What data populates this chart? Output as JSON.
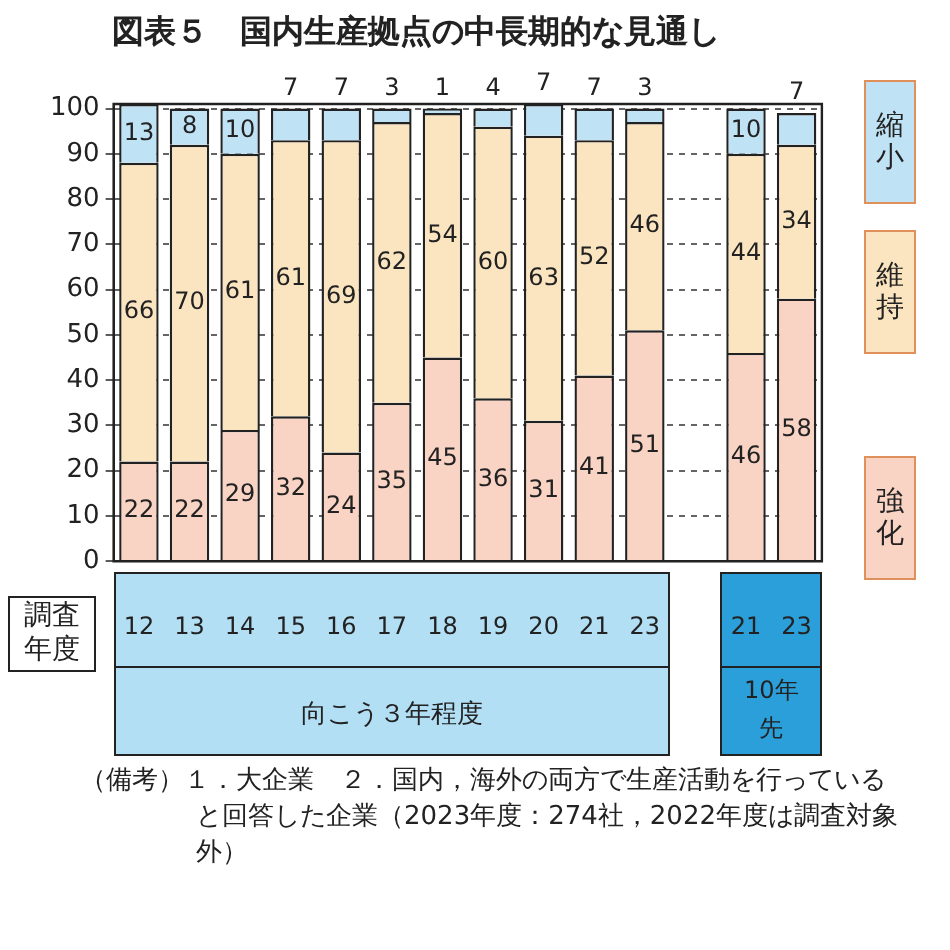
{
  "chart_data": {
    "type": "bar",
    "title": "図表５　国内生産拠点の中長期的な見通し",
    "xlabel": "調査年度",
    "categories": [
      "12",
      "13",
      "14",
      "15",
      "16",
      "17",
      "18",
      "19",
      "20",
      "21",
      "23",
      null,
      "21",
      "23"
    ],
    "stacked": true,
    "ylim": [
      0,
      101
    ],
    "yticks": [
      0,
      10,
      20,
      30,
      40,
      50,
      60,
      70,
      80,
      90,
      100
    ],
    "grid": "y",
    "legend": "right",
    "data_labels": true,
    "series": [
      {
        "name": "強化",
        "color": "#f9d3c3",
        "values": [
          22,
          22,
          29,
          32,
          24,
          35,
          45,
          36,
          31,
          41,
          51,
          null,
          46,
          58
        ]
      },
      {
        "name": "維持",
        "color": "#fbe5c0",
        "values": [
          66,
          70,
          61,
          61,
          69,
          62,
          54,
          60,
          63,
          52,
          46,
          null,
          44,
          34
        ]
      },
      {
        "name": "縮小",
        "color": "#bfe2f4",
        "values": [
          13,
          8,
          10,
          7,
          7,
          3,
          1,
          4,
          7,
          7,
          3,
          null,
          10,
          7
        ]
      }
    ],
    "annotations": [
      "向こう３年程度",
      "10年先",
      "（備考）１．大企業　２．国内，海外の両方で生産活動を行っていると回答した企業（2023年度：274社，2022年度は調査対象外）"
    ]
  }
}
